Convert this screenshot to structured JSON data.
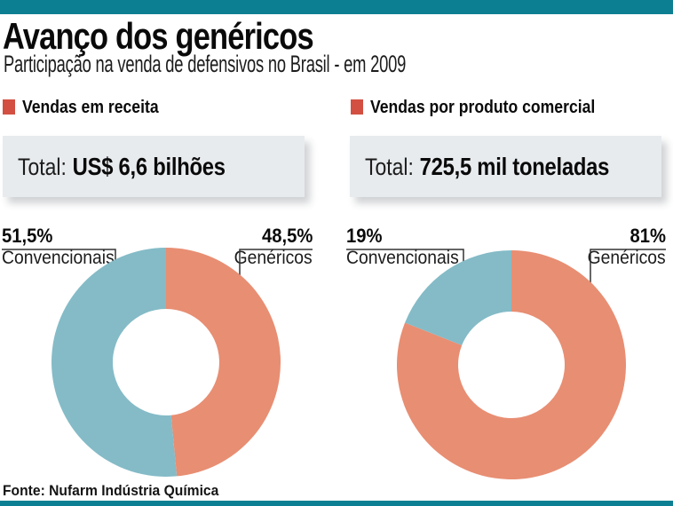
{
  "header": {
    "title": "Avanço dos genéricos",
    "subtitle": "Participação na venda de defensivos no Brasil - em 2009"
  },
  "source": "Fonte: Nufarm Indústria Química",
  "colors": {
    "accent_bar": "#0d7f92",
    "legend_marker": "#d24f41",
    "generics_slice": "#e88e73",
    "conventional_slice": "#84bbc7",
    "total_box_bg": "#e8ebee"
  },
  "chart_data": [
    {
      "type": "pie",
      "title": "Vendas em receita",
      "total_label": "Total:",
      "total_value": "US$ 6,6 bilhões",
      "slices": [
        {
          "label": "Genéricos",
          "pct_label": "48,5%",
          "value": 48.5,
          "color": "#e88e73"
        },
        {
          "label": "Convencionais",
          "pct_label": "51,5%",
          "value": 51.5,
          "color": "#84bbc7"
        }
      ]
    },
    {
      "type": "pie",
      "title": "Vendas por produto comercial",
      "total_label": "Total:",
      "total_value": "725,5 mil toneladas",
      "slices": [
        {
          "label": "Genéricos",
          "pct_label": "81%",
          "value": 81,
          "color": "#e88e73"
        },
        {
          "label": "Convencionais",
          "pct_label": "19%",
          "value": 19,
          "color": "#84bbc7"
        }
      ]
    }
  ]
}
